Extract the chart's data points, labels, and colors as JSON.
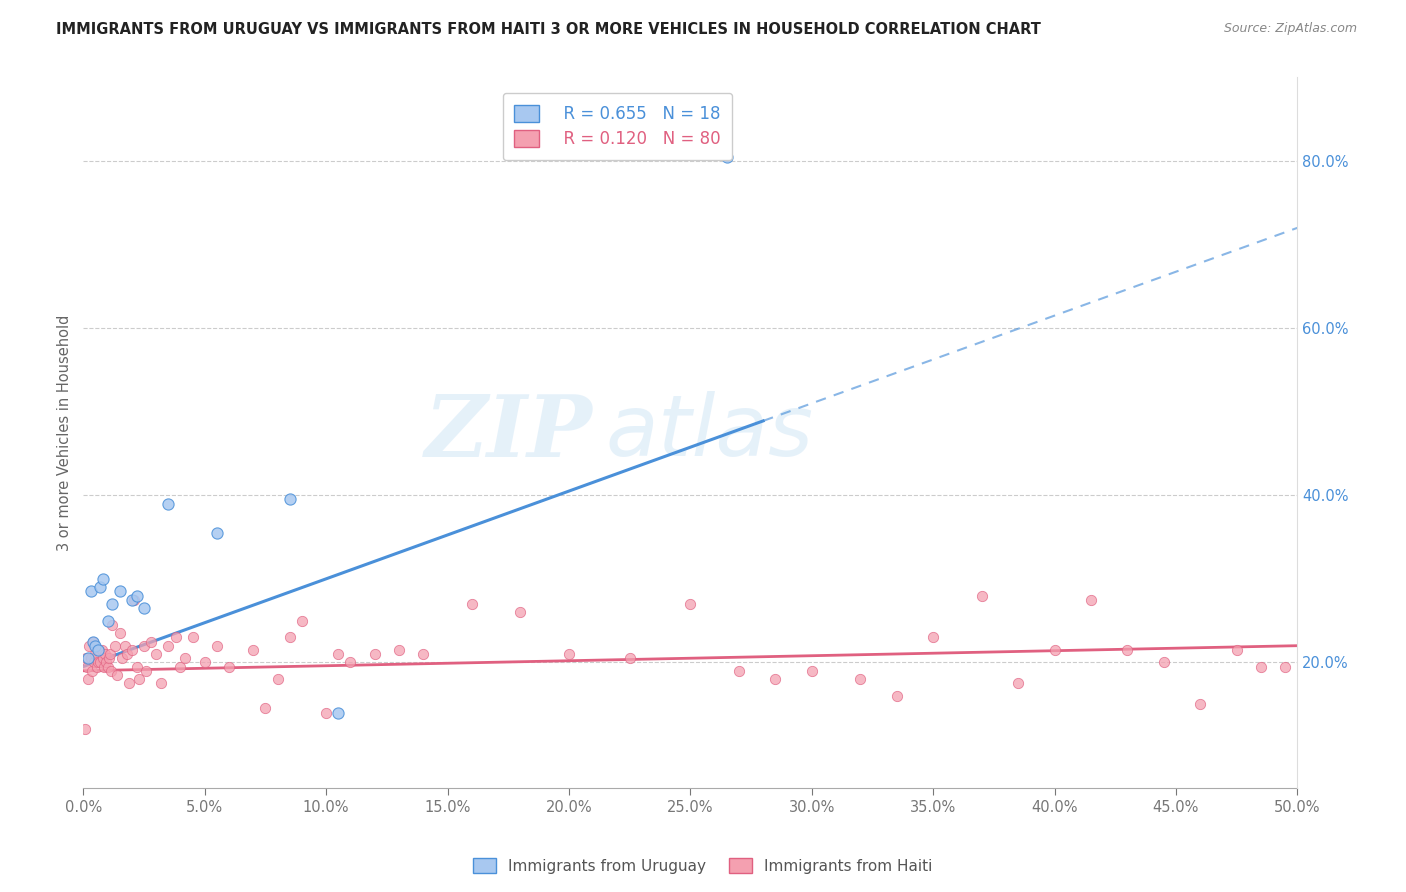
{
  "title": "IMMIGRANTS FROM URUGUAY VS IMMIGRANTS FROM HAITI 3 OR MORE VEHICLES IN HOUSEHOLD CORRELATION CHART",
  "source": "Source: ZipAtlas.com",
  "ylabel": "3 or more Vehicles in Household",
  "xlim": [
    0.0,
    50.0
  ],
  "ylim": [
    5.0,
    90.0
  ],
  "yticks_right": [
    20.0,
    40.0,
    60.0,
    80.0
  ],
  "xticks": [
    0.0,
    5.0,
    10.0,
    15.0,
    20.0,
    25.0,
    30.0,
    35.0,
    40.0,
    45.0,
    50.0
  ],
  "uruguay_R": 0.655,
  "uruguay_N": 18,
  "haiti_R": 0.12,
  "haiti_N": 80,
  "legend_label_uruguay": "Immigrants from Uruguay",
  "legend_label_haiti": "Immigrants from Haiti",
  "color_uruguay": "#a8c8f0",
  "color_haiti": "#f4a0b0",
  "color_line_uruguay": "#4a90d9",
  "color_line_haiti": "#e06080",
  "background_color": "#ffffff",
  "watermark_zip": "ZIP",
  "watermark_atlas": "atlas",
  "uruguay_x": [
    0.2,
    0.3,
    0.4,
    0.5,
    0.6,
    0.7,
    0.8,
    1.0,
    1.2,
    1.5,
    2.0,
    2.2,
    2.5,
    3.5,
    5.5,
    8.5,
    10.5,
    26.5
  ],
  "uruguay_y": [
    20.5,
    28.5,
    22.5,
    22.0,
    21.5,
    29.0,
    30.0,
    25.0,
    27.0,
    28.5,
    27.5,
    28.0,
    26.5,
    39.0,
    35.5,
    39.5,
    14.0,
    80.5
  ],
  "haiti_x": [
    0.05,
    0.1,
    0.15,
    0.2,
    0.25,
    0.3,
    0.35,
    0.4,
    0.45,
    0.5,
    0.55,
    0.6,
    0.65,
    0.7,
    0.75,
    0.8,
    0.85,
    0.9,
    0.95,
    1.0,
    1.05,
    1.1,
    1.15,
    1.2,
    1.3,
    1.4,
    1.5,
    1.6,
    1.7,
    1.8,
    1.9,
    2.0,
    2.1,
    2.2,
    2.3,
    2.5,
    2.6,
    2.8,
    3.0,
    3.2,
    3.5,
    3.8,
    4.0,
    4.2,
    4.5,
    5.0,
    5.5,
    6.0,
    7.0,
    7.5,
    8.0,
    8.5,
    9.0,
    10.0,
    10.5,
    11.0,
    12.0,
    13.0,
    14.0,
    16.0,
    18.0,
    20.0,
    22.5,
    25.0,
    27.0,
    28.5,
    30.0,
    32.0,
    33.5,
    35.0,
    37.0,
    38.5,
    40.0,
    41.5,
    43.0,
    44.5,
    46.0,
    47.5,
    48.5,
    49.5
  ],
  "haiti_y": [
    12.0,
    20.5,
    19.5,
    18.0,
    22.0,
    20.5,
    19.0,
    22.5,
    20.0,
    21.0,
    19.5,
    20.0,
    21.5,
    20.0,
    21.5,
    20.5,
    19.5,
    21.0,
    20.0,
    19.5,
    20.5,
    21.0,
    19.0,
    24.5,
    22.0,
    18.5,
    23.5,
    20.5,
    22.0,
    21.0,
    17.5,
    21.5,
    27.5,
    19.5,
    18.0,
    22.0,
    19.0,
    22.5,
    21.0,
    17.5,
    22.0,
    23.0,
    19.5,
    20.5,
    23.0,
    20.0,
    22.0,
    19.5,
    21.5,
    14.5,
    18.0,
    23.0,
    25.0,
    14.0,
    21.0,
    20.0,
    21.0,
    21.5,
    21.0,
    27.0,
    26.0,
    21.0,
    20.5,
    27.0,
    19.0,
    18.0,
    19.0,
    18.0,
    16.0,
    23.0,
    28.0,
    17.5,
    21.5,
    27.5,
    21.5,
    20.0,
    15.0,
    21.5,
    19.5,
    19.5
  ],
  "uruguay_line_x0": 0.0,
  "uruguay_line_x1": 50.0,
  "uruguay_line_y0": 19.5,
  "uruguay_line_y1": 72.0,
  "uruguay_solid_end": 28.0,
  "haiti_line_x0": 0.0,
  "haiti_line_x1": 50.0,
  "haiti_line_y0": 19.0,
  "haiti_line_y1": 22.0
}
